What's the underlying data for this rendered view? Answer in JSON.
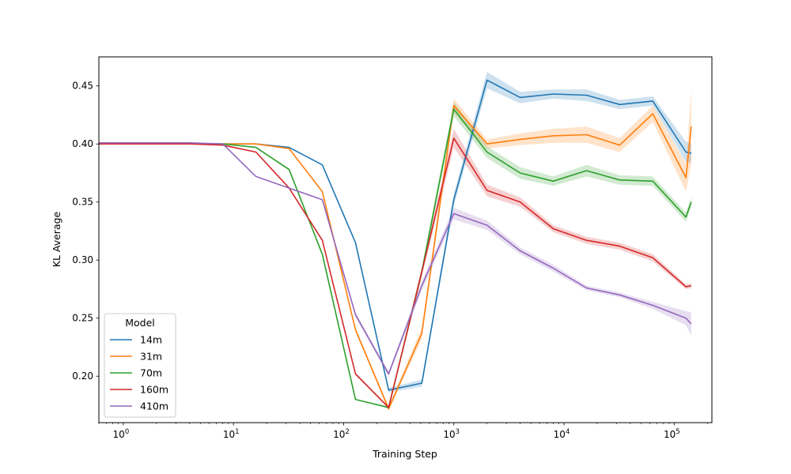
{
  "chart_data": {
    "type": "line",
    "title": "",
    "xlabel": "Training Step",
    "ylabel": "KL Average",
    "xscale": "log",
    "xlim": [
      0.6,
      220000
    ],
    "ylim": [
      0.16,
      0.475
    ],
    "grid": false,
    "x_ticks": [
      {
        "value": 1,
        "base": "10",
        "exp": "0"
      },
      {
        "value": 10,
        "base": "10",
        "exp": "1"
      },
      {
        "value": 100,
        "base": "10",
        "exp": "2"
      },
      {
        "value": 1000,
        "base": "10",
        "exp": "3"
      },
      {
        "value": 10000,
        "base": "10",
        "exp": "4"
      },
      {
        "value": 100000,
        "base": "10",
        "exp": "5"
      }
    ],
    "y_ticks": [
      {
        "value": 0.2,
        "label": "0.20"
      },
      {
        "value": 0.25,
        "label": "0.25"
      },
      {
        "value": 0.3,
        "label": "0.30"
      },
      {
        "value": 0.35,
        "label": "0.35"
      },
      {
        "value": 0.4,
        "label": "0.40"
      },
      {
        "value": 0.45,
        "label": "0.45"
      }
    ],
    "legend": {
      "title": "Model",
      "location": "lower-left"
    },
    "x": [
      0.6,
      1,
      2,
      4,
      8,
      16,
      32,
      64,
      128,
      256,
      512,
      1000,
      2000,
      4000,
      8000,
      16000,
      32000,
      64000,
      128000,
      143000
    ],
    "series": [
      {
        "name": "14m",
        "color": "#1f77b4",
        "values": [
          0.4,
          0.4,
          0.4,
          0.4,
          0.4,
          0.4,
          0.397,
          0.382,
          0.315,
          0.188,
          0.194,
          0.352,
          0.455,
          0.44,
          0.443,
          0.442,
          0.434,
          0.437,
          0.393,
          0.392
        ],
        "band": [
          0.0,
          0.0,
          0.0,
          0.0,
          0.0,
          0.0,
          0.0,
          0.0,
          0.0,
          0.002,
          0.003,
          0.005,
          0.007,
          0.005,
          0.004,
          0.005,
          0.004,
          0.004,
          0.009,
          0.008
        ]
      },
      {
        "name": "31m",
        "color": "#ff7f0e",
        "values": [
          0.4,
          0.4,
          0.4,
          0.4,
          0.4,
          0.4,
          0.396,
          0.359,
          0.24,
          0.172,
          0.237,
          0.433,
          0.4,
          0.404,
          0.407,
          0.408,
          0.399,
          0.426,
          0.371,
          0.415
        ],
        "band": [
          0.0,
          0.0,
          0.0,
          0.0,
          0.0,
          0.0,
          0.0,
          0.0,
          0.002,
          0.002,
          0.005,
          0.006,
          0.004,
          0.005,
          0.006,
          0.007,
          0.006,
          0.007,
          0.012,
          0.032
        ]
      },
      {
        "name": "70m",
        "color": "#2ca02c",
        "values": [
          0.4,
          0.4,
          0.4,
          0.4,
          0.4,
          0.397,
          0.378,
          0.305,
          0.18,
          0.173,
          0.29,
          0.43,
          0.393,
          0.375,
          0.368,
          0.377,
          0.369,
          0.368,
          0.337,
          0.35
        ],
        "band": [
          0.0,
          0.0,
          0.0,
          0.0,
          0.0,
          0.0,
          0.001,
          0.0,
          0.0,
          0.001,
          0.004,
          0.006,
          0.005,
          0.005,
          0.004,
          0.005,
          0.004,
          0.004,
          0.004,
          0.004
        ]
      },
      {
        "name": "160m",
        "color": "#d62728",
        "values": [
          0.4,
          0.4,
          0.4,
          0.4,
          0.399,
          0.393,
          0.362,
          0.317,
          0.202,
          0.173,
          0.29,
          0.405,
          0.36,
          0.35,
          0.327,
          0.317,
          0.312,
          0.302,
          0.277,
          0.278
        ],
        "band": [
          0.0,
          0.0,
          0.0,
          0.0,
          0.0,
          0.0,
          0.0,
          0.0,
          0.001,
          0.001,
          0.004,
          0.008,
          0.005,
          0.004,
          0.003,
          0.003,
          0.003,
          0.003,
          0.002,
          0.002
        ]
      },
      {
        "name": "410m",
        "color": "#9467bd",
        "values": [
          0.401,
          0.401,
          0.401,
          0.401,
          0.4,
          0.372,
          0.362,
          0.352,
          0.253,
          0.202,
          0.278,
          0.34,
          0.33,
          0.308,
          0.293,
          0.276,
          0.27,
          0.261,
          0.25,
          0.245
        ],
        "band": [
          0.0,
          0.0,
          0.0,
          0.0,
          0.0,
          0.0,
          0.0,
          0.0,
          0.002,
          0.002,
          0.004,
          0.005,
          0.004,
          0.003,
          0.003,
          0.002,
          0.002,
          0.003,
          0.006,
          0.01
        ]
      }
    ]
  }
}
